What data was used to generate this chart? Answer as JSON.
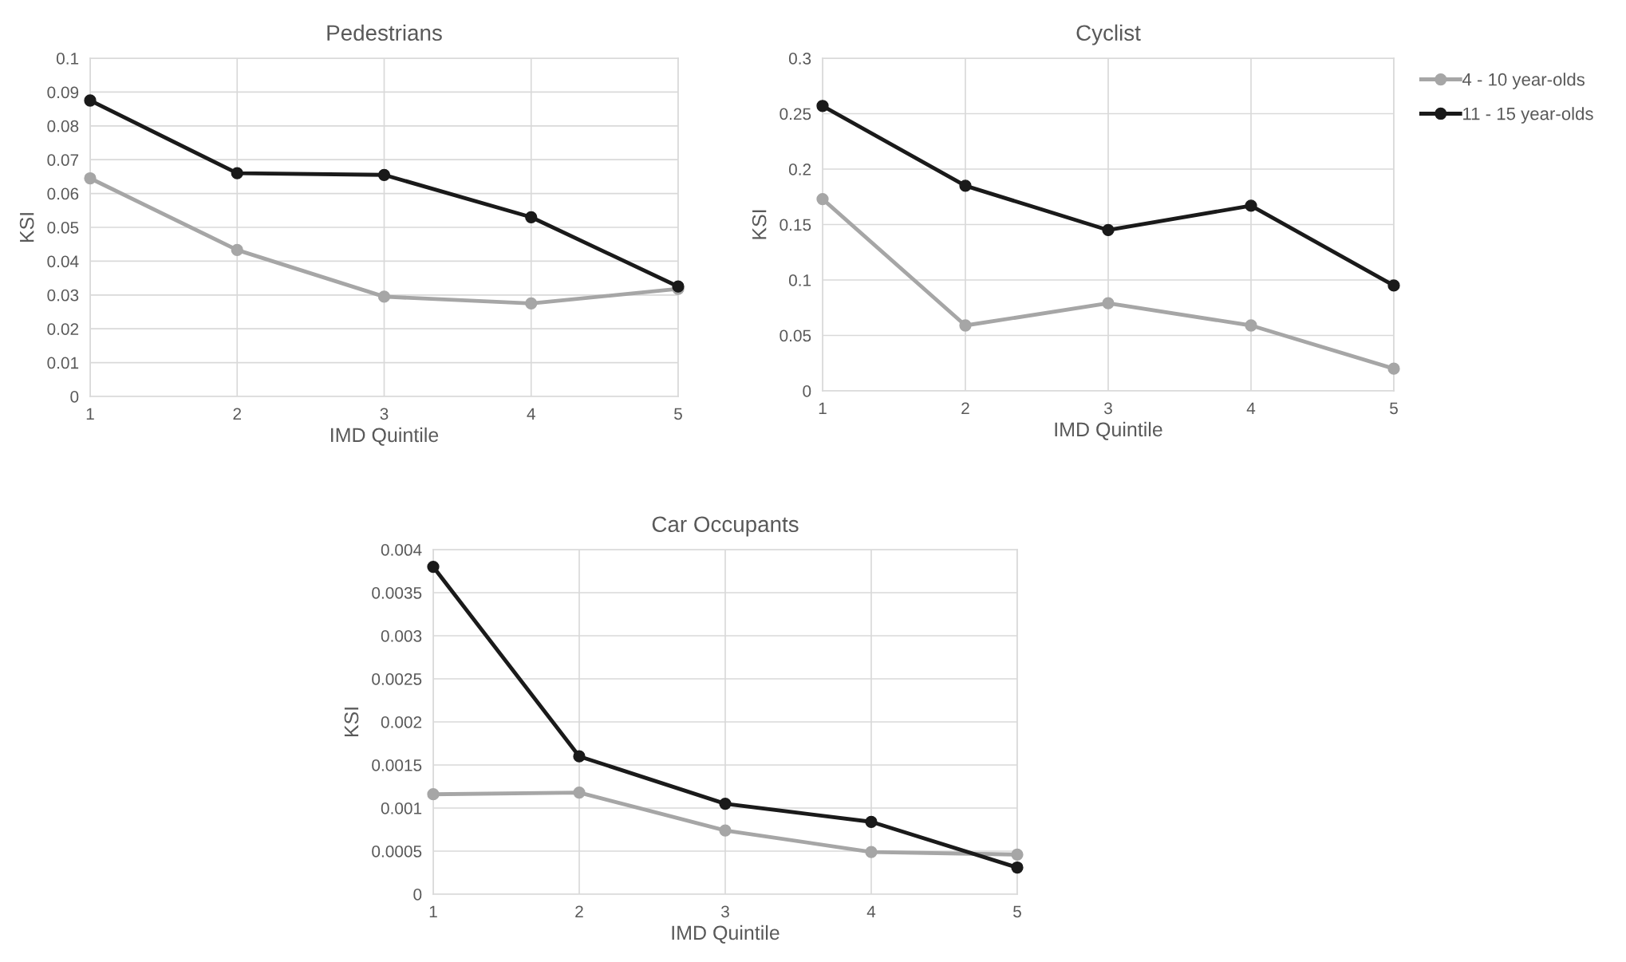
{
  "chart_data": [
    {
      "type": "line",
      "title": "Pedestrians",
      "xlabel": "IMD Quintile",
      "ylabel": "KSI",
      "x": [
        1,
        2,
        3,
        4,
        5
      ],
      "xlim": [
        1,
        5
      ],
      "xticks": [
        1,
        2,
        3,
        4,
        5
      ],
      "ylim": [
        0,
        0.1
      ],
      "yticks": [
        0,
        0.01,
        0.02,
        0.03,
        0.04,
        0.05,
        0.06,
        0.07,
        0.08,
        0.09,
        0.1
      ],
      "grid": true,
      "marker": "circle",
      "line_style": "solid",
      "series": [
        {
          "color": "#a6a6a6",
          "values": [
            0.0645,
            0.0433,
            0.0295,
            0.0275,
            0.0318
          ]
        },
        {
          "color": "#1a1a1a",
          "values": [
            0.0875,
            0.066,
            0.0655,
            0.053,
            0.0325
          ]
        }
      ]
    },
    {
      "type": "line",
      "title": "Cyclist",
      "xlabel": "IMD Quintile",
      "ylabel": "KSI",
      "x": [
        1,
        2,
        3,
        4,
        5
      ],
      "xlim": [
        1,
        5
      ],
      "xticks": [
        1,
        2,
        3,
        4,
        5
      ],
      "ylim": [
        0,
        0.3
      ],
      "yticks": [
        0,
        0.05,
        0.1,
        0.15,
        0.2,
        0.25,
        0.3
      ],
      "grid": true,
      "marker": "circle",
      "line_style": "solid",
      "legend": "right",
      "series": [
        {
          "name": "4 - 10 year-olds",
          "color": "#a6a6a6",
          "values": [
            0.173,
            0.059,
            0.079,
            0.059,
            0.02
          ]
        },
        {
          "name": "11 - 15 year-olds",
          "color": "#1a1a1a",
          "values": [
            0.257,
            0.185,
            0.145,
            0.167,
            0.095
          ]
        }
      ]
    },
    {
      "type": "line",
      "title": "Car Occupants",
      "xlabel": "IMD Quintile",
      "ylabel": "KSI",
      "x": [
        1,
        2,
        3,
        4,
        5
      ],
      "xlim": [
        1,
        5
      ],
      "xticks": [
        1,
        2,
        3,
        4,
        5
      ],
      "ylim": [
        0,
        0.004
      ],
      "yticks": [
        0,
        0.0005,
        0.001,
        0.0015,
        0.002,
        0.0025,
        0.003,
        0.0035,
        0.004
      ],
      "grid": true,
      "marker": "circle",
      "line_style": "solid",
      "series": [
        {
          "color": "#a6a6a6",
          "values": [
            0.00116,
            0.00118,
            0.00074,
            0.00049,
            0.00046
          ]
        },
        {
          "color": "#1a1a1a",
          "values": [
            0.0038,
            0.0016,
            0.00105,
            0.00084,
            0.00031
          ]
        }
      ]
    }
  ]
}
